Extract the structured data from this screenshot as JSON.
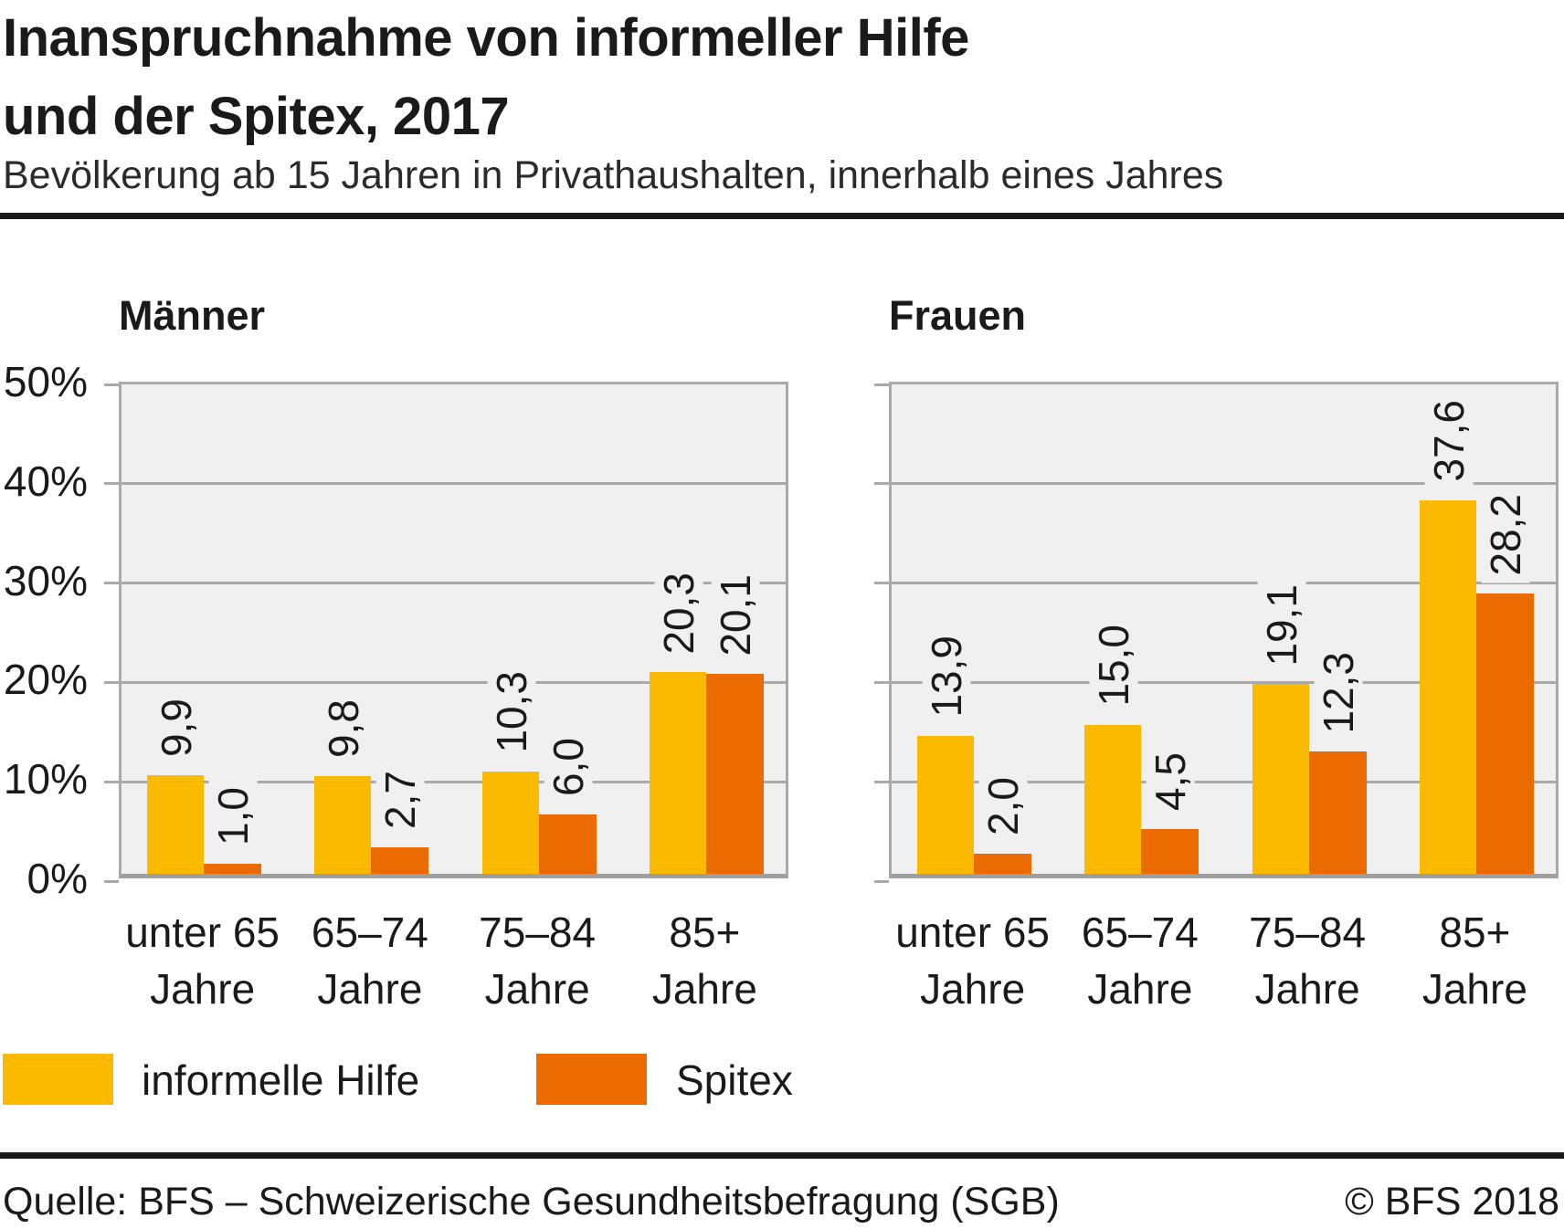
{
  "header": {
    "title_line1": "Inanspruchnahme von informeller Hilfe",
    "title_line2": "und der Spitex, 2017",
    "subtitle": "Bevölkerung ab 15 Jahren in Privathaushalten, innerhalb eines Jahres"
  },
  "colors": {
    "informelle_hilfe": "#FBBA00",
    "spitex": "#EC6B00",
    "plot_background": "#F0F0F0",
    "gridline": "#A9A9A9",
    "text": "#1A1A1A"
  },
  "axis": {
    "y_ticks": [
      "50%",
      "40%",
      "30%",
      "20%",
      "10%",
      "0%"
    ],
    "y_max": 50,
    "grid": true
  },
  "legend": {
    "position": "bottom-left",
    "items": [
      {
        "label": "informelle Hilfe",
        "color": "#FBBA00"
      },
      {
        "label": "Spitex",
        "color": "#EC6B00"
      }
    ]
  },
  "footer": {
    "source": "Quelle: BFS – Schweizerische Gesundheitsbefragung (SGB)",
    "copyright": "© BFS 2018"
  },
  "chart_data": [
    {
      "type": "bar",
      "title": "Männer",
      "categories": [
        "unter 65 Jahre",
        "65–74 Jahre",
        "75–84 Jahre",
        "85+ Jahre"
      ],
      "category_lines": [
        {
          "line1": "unter 65",
          "line2": "Jahre"
        },
        {
          "line1": "65–74",
          "line2": "Jahre"
        },
        {
          "line1": "75–84",
          "line2": "Jahre"
        },
        {
          "line1": "85+",
          "line2": "Jahre"
        }
      ],
      "series": [
        {
          "name": "informelle Hilfe",
          "values": [
            9.9,
            9.8,
            10.3,
            20.3
          ],
          "labels": [
            "9,9",
            "9,8",
            "10,3",
            "20,3"
          ]
        },
        {
          "name": "Spitex",
          "values": [
            1.0,
            2.7,
            6.0,
            20.1
          ],
          "labels": [
            "1,0",
            "2,7",
            "6,0",
            "20,1"
          ]
        }
      ],
      "xlabel": "",
      "ylabel": "",
      "ylim": [
        0,
        50
      ]
    },
    {
      "type": "bar",
      "title": "Frauen",
      "categories": [
        "unter 65 Jahre",
        "65–74 Jahre",
        "75–84 Jahre",
        "85+ Jahre"
      ],
      "category_lines": [
        {
          "line1": "unter 65",
          "line2": "Jahre"
        },
        {
          "line1": "65–74",
          "line2": "Jahre"
        },
        {
          "line1": "75–84",
          "line2": "Jahre"
        },
        {
          "line1": "85+",
          "line2": "Jahre"
        }
      ],
      "series": [
        {
          "name": "informelle Hilfe",
          "values": [
            13.9,
            15.0,
            19.1,
            37.6
          ],
          "labels": [
            "13,9",
            "15,0",
            "19,1",
            "37,6"
          ]
        },
        {
          "name": "Spitex",
          "values": [
            2.0,
            4.5,
            12.3,
            28.2
          ],
          "labels": [
            "2,0",
            "4,5",
            "12,3",
            "28,2"
          ]
        }
      ],
      "xlabel": "",
      "ylabel": "",
      "ylim": [
        0,
        50
      ]
    }
  ]
}
